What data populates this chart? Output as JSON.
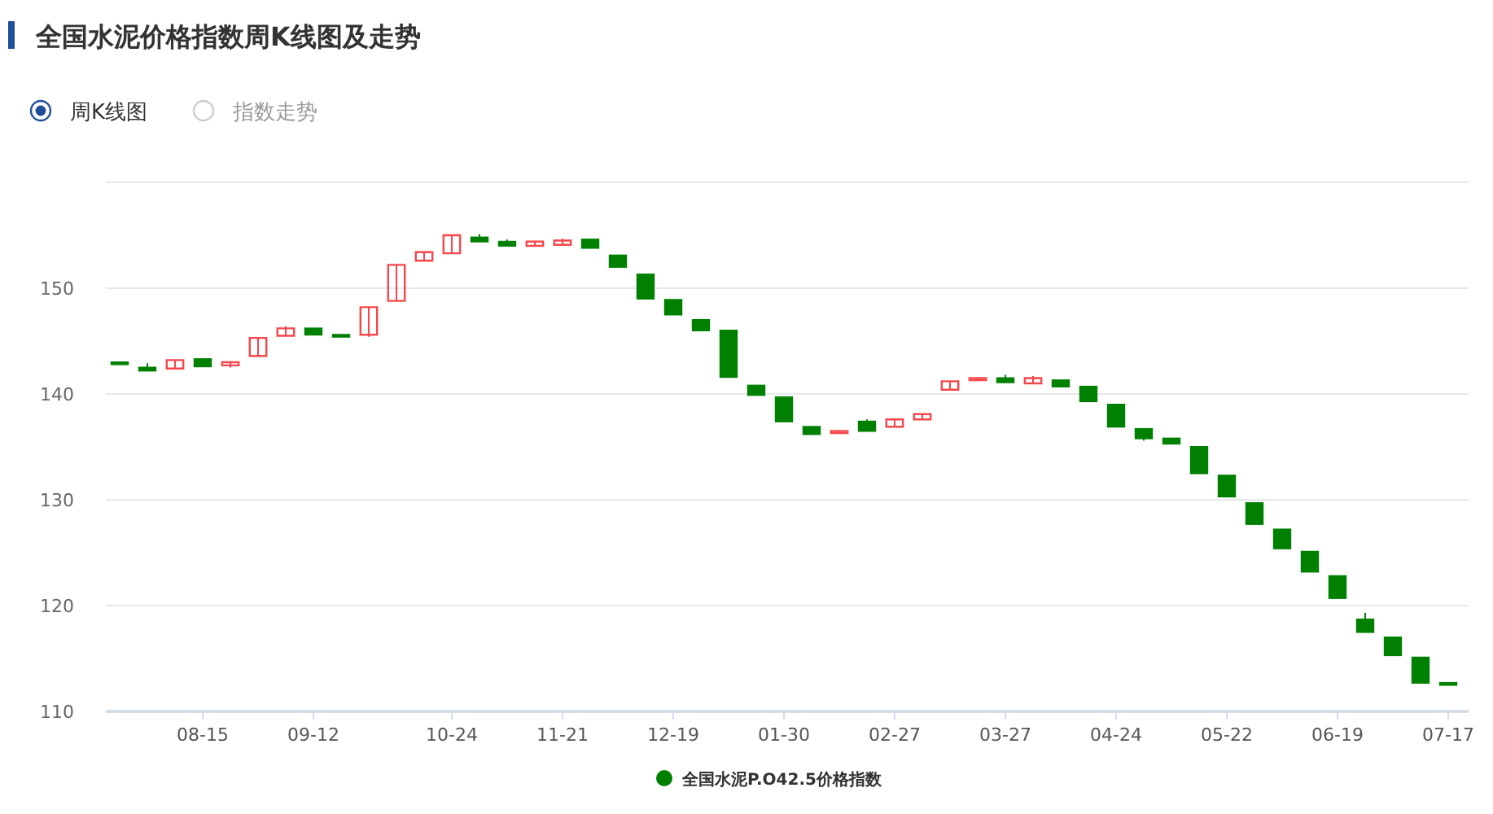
{
  "chart_data": {
    "type": "candlestick",
    "title": "全国水泥价格指数周K线图及走势",
    "annotations": [
      "周K线图",
      "指数走势"
    ],
    "categories": [
      null,
      null,
      null,
      "08-15",
      null,
      null,
      null,
      "09-12",
      null,
      null,
      null,
      null,
      "10-24",
      null,
      null,
      null,
      "11-21",
      null,
      null,
      null,
      "12-19",
      null,
      null,
      null,
      "01-30",
      null,
      null,
      null,
      "02-27",
      null,
      null,
      null,
      "03-27",
      null,
      null,
      null,
      "04-24",
      null,
      null,
      null,
      "05-22",
      null,
      null,
      null,
      "06-19",
      null,
      null,
      null,
      "07-17"
    ],
    "series": [
      {
        "name": "全国水泥P.O42.5价格指数",
        "color": "#008000",
        "colors": [
          "#008000",
          "#008000",
          "#f5474b",
          "#008000",
          "#f5474b",
          "#f5474b",
          "#f5474b",
          "#008000",
          "#008000",
          "#f5474b",
          "#f5474b",
          "#f5474b",
          "#f5474b",
          "#008000",
          "#008000",
          "#f5474b",
          "#f5474b",
          "#008000",
          "#008000",
          "#008000",
          "#008000",
          "#008000",
          "#008000",
          "#008000",
          "#008000",
          "#008000",
          "#f5474b",
          "#008000",
          "#f5474b",
          "#f5474b",
          "#f5474b",
          "#f5474b",
          "#008000",
          "#f5474b",
          "#008000",
          "#008000",
          "#008000",
          "#008000",
          "#008000",
          "#008000",
          "#008000",
          "#008000",
          "#008000",
          "#008000",
          "#008000",
          "#008000",
          "#008000",
          "#008000",
          "#008000"
        ],
        "ohlc": [
          [
            143.0,
            143.0,
            142.8,
            142.8
          ],
          [
            142.5,
            142.9,
            142.2,
            142.2
          ],
          [
            142.4,
            143.2,
            142.4,
            143.2
          ],
          [
            143.3,
            143.3,
            142.6,
            142.6
          ],
          [
            142.7,
            143.0,
            142.5,
            143.0
          ],
          [
            143.6,
            145.3,
            143.6,
            145.3
          ],
          [
            145.5,
            146.4,
            145.5,
            146.2
          ],
          [
            146.2,
            146.2,
            145.6,
            145.6
          ],
          [
            145.6,
            145.6,
            145.4,
            145.4
          ],
          [
            145.6,
            148.2,
            145.4,
            148.2
          ],
          [
            148.8,
            152.2,
            148.8,
            152.2
          ],
          [
            152.6,
            153.4,
            152.6,
            153.4
          ],
          [
            153.3,
            155.0,
            153.3,
            155.0
          ],
          [
            154.8,
            155.1,
            154.4,
            154.4
          ],
          [
            154.4,
            154.6,
            154.0,
            154.0
          ],
          [
            154.0,
            154.4,
            154.0,
            154.4
          ],
          [
            154.1,
            154.7,
            154.1,
            154.5
          ],
          [
            154.6,
            154.6,
            153.8,
            153.8
          ],
          [
            153.1,
            153.1,
            152.0,
            152.0
          ],
          [
            151.3,
            151.3,
            149.0,
            149.0
          ],
          [
            148.9,
            148.9,
            147.5,
            147.5
          ],
          [
            147.0,
            147.0,
            146.0,
            146.0
          ],
          [
            146.0,
            146.0,
            141.6,
            141.6
          ],
          [
            140.8,
            140.8,
            139.9,
            139.9
          ],
          [
            139.7,
            139.7,
            137.4,
            137.4
          ],
          [
            136.9,
            136.9,
            136.2,
            136.2
          ],
          [
            136.3,
            136.5,
            136.3,
            136.5
          ],
          [
            137.4,
            137.6,
            136.5,
            136.5
          ],
          [
            136.9,
            137.6,
            136.9,
            137.6
          ],
          [
            137.6,
            138.1,
            137.6,
            138.1
          ],
          [
            140.4,
            141.2,
            140.4,
            141.2
          ],
          [
            141.3,
            141.5,
            141.3,
            141.5
          ],
          [
            141.5,
            141.8,
            141.1,
            141.1
          ],
          [
            141.0,
            141.7,
            141.0,
            141.5
          ],
          [
            141.3,
            141.3,
            140.7,
            140.7
          ],
          [
            140.7,
            140.7,
            139.3,
            139.3
          ],
          [
            139.0,
            139.0,
            136.9,
            136.9
          ],
          [
            136.7,
            136.7,
            135.6,
            135.8
          ],
          [
            135.8,
            135.8,
            135.3,
            135.3
          ],
          [
            135.0,
            135.0,
            132.5,
            132.5
          ],
          [
            132.3,
            132.3,
            130.3,
            130.3
          ],
          [
            129.7,
            129.7,
            127.7,
            127.7
          ],
          [
            127.2,
            127.2,
            125.4,
            125.4
          ],
          [
            125.1,
            125.1,
            123.2,
            123.2
          ],
          [
            122.8,
            122.8,
            120.7,
            120.7
          ],
          [
            118.7,
            119.3,
            117.5,
            117.5
          ],
          [
            117.0,
            117.0,
            115.3,
            115.3
          ],
          [
            115.1,
            115.1,
            112.7,
            112.7
          ],
          [
            112.7,
            112.7,
            112.5,
            112.5
          ]
        ]
      }
    ],
    "ylim": [
      110,
      160
    ],
    "yticks": [
      110,
      120,
      130,
      140,
      150,
      {
        "value": 160,
        "label": null
      }
    ],
    "grid": "y",
    "legend": "bottom"
  }
}
